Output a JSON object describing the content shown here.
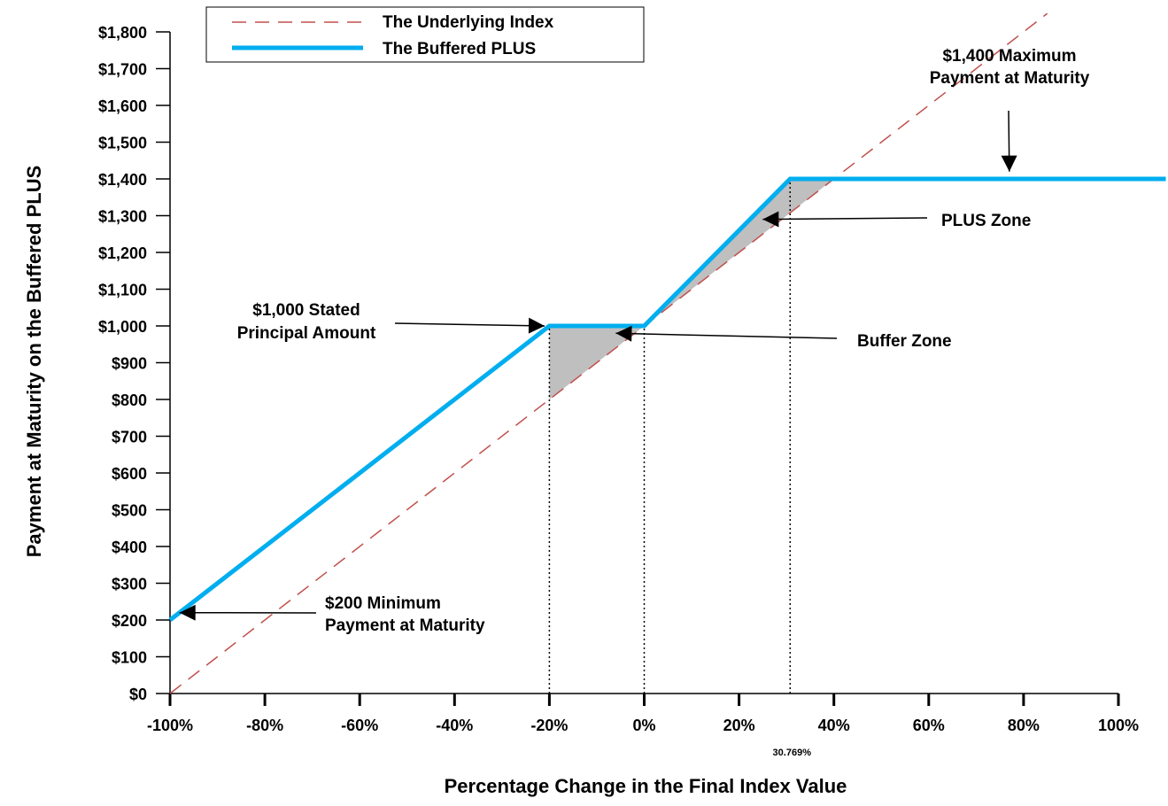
{
  "chart_data": {
    "type": "line",
    "xlabel": "Percentage Change in the Final Index Value",
    "ylabel": "Payment at Maturity on the Buffered PLUS",
    "xlim": [
      -100,
      100
    ],
    "ylim": [
      0,
      1800
    ],
    "grid": false,
    "legend_position": "top-center",
    "x_ticks": [
      {
        "value": -100,
        "label": "-100%"
      },
      {
        "value": -80,
        "label": "-80%"
      },
      {
        "value": -60,
        "label": "-60%"
      },
      {
        "value": -40,
        "label": "-40%"
      },
      {
        "value": -20,
        "label": "-20%"
      },
      {
        "value": 0,
        "label": "0%"
      },
      {
        "value": 20,
        "label": "20%"
      },
      {
        "value": 40,
        "label": "40%"
      },
      {
        "value": 60,
        "label": "60%"
      },
      {
        "value": 80,
        "label": "80%"
      },
      {
        "value": 100,
        "label": "100%"
      }
    ],
    "x_special_tick": {
      "value": 30.769,
      "label": "30.769%"
    },
    "y_ticks": [
      {
        "value": 0,
        "label": "$0"
      },
      {
        "value": 100,
        "label": "$100"
      },
      {
        "value": 200,
        "label": "$200"
      },
      {
        "value": 300,
        "label": "$300"
      },
      {
        "value": 400,
        "label": "$400"
      },
      {
        "value": 500,
        "label": "$500"
      },
      {
        "value": 600,
        "label": "$600"
      },
      {
        "value": 700,
        "label": "$700"
      },
      {
        "value": 800,
        "label": "$800"
      },
      {
        "value": 900,
        "label": "$900"
      },
      {
        "value": 1000,
        "label": "$1,000"
      },
      {
        "value": 1100,
        "label": "$1,100"
      },
      {
        "value": 1200,
        "label": "$1,200"
      },
      {
        "value": 1300,
        "label": "$1,300"
      },
      {
        "value": 1400,
        "label": "$1,400"
      },
      {
        "value": 1500,
        "label": "$1,500"
      },
      {
        "value": 1600,
        "label": "$1,600"
      },
      {
        "value": 1700,
        "label": "$1,700"
      },
      {
        "value": 1800,
        "label": "$1,800"
      }
    ],
    "series": [
      {
        "name": "The Underlying Index",
        "color": "#c0504d",
        "style": "dashed",
        "points": [
          [
            -100,
            0
          ],
          [
            85,
            1850
          ]
        ]
      },
      {
        "name": "The Buffered PLUS",
        "color": "#00aeef",
        "style": "solid",
        "points": [
          [
            -100,
            200
          ],
          [
            -20,
            1000
          ],
          [
            0,
            1000
          ],
          [
            30.769,
            1400
          ],
          [
            110,
            1400
          ]
        ]
      }
    ],
    "shaded_regions": [
      {
        "name": "buffer-zone",
        "color": "#bfbfbf",
        "points": [
          [
            -20,
            1000
          ],
          [
            0,
            1000
          ],
          [
            -20,
            800
          ]
        ]
      },
      {
        "name": "plus-zone",
        "color": "#bfbfbf",
        "points": [
          [
            0,
            1000
          ],
          [
            30.769,
            1400
          ],
          [
            40,
            1400
          ],
          [
            30.769,
            1307.69
          ]
        ]
      }
    ],
    "reference_lines": [
      {
        "x": -20,
        "y_top": 1000
      },
      {
        "x": 0,
        "y_top": 1000
      },
      {
        "x": 30.769,
        "y_top": 1400
      }
    ],
    "annotations": [
      {
        "name": "stated-principal",
        "lines": [
          "$1,000 Stated",
          "Principal Amount"
        ],
        "arrow_target": [
          -21,
          1000
        ]
      },
      {
        "name": "buffer-zone",
        "lines": [
          "Buffer  Zone"
        ],
        "arrow_target": [
          -6,
          980
        ]
      },
      {
        "name": "plus-zone",
        "lines": [
          "PLUS Zone"
        ],
        "arrow_target": [
          25,
          1290
        ]
      },
      {
        "name": "maximum-payment",
        "lines": [
          "$1,400 Maximum",
          "Payment at Maturity"
        ],
        "arrow_target": [
          77,
          1420
        ]
      },
      {
        "name": "minimum-payment",
        "lines": [
          "$200 Minimum",
          "Payment at Maturity"
        ],
        "arrow_target": [
          -98,
          220
        ]
      }
    ]
  }
}
